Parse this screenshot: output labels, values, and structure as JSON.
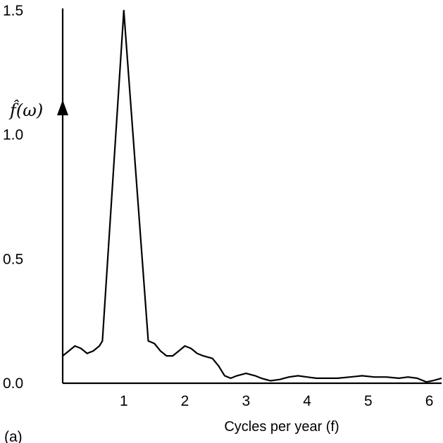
{
  "chart_data": {
    "type": "line",
    "panel_label": "(a)",
    "xlabel": "Cycles per year (f)",
    "ylabel": "f̂(ω)",
    "xlim": [
      0,
      6.2
    ],
    "ylim": [
      0,
      1.5
    ],
    "x_ticks": [
      {
        "value": 1,
        "label": "1"
      },
      {
        "value": 2,
        "label": "2"
      },
      {
        "value": 3,
        "label": "3"
      },
      {
        "value": 4,
        "label": "4"
      },
      {
        "value": 5,
        "label": "5"
      },
      {
        "value": 6,
        "label": "6"
      }
    ],
    "y_ticks": [
      {
        "value": 0.0,
        "label": "0.0"
      },
      {
        "value": 0.5,
        "label": "0.5"
      },
      {
        "value": 1.0,
        "label": "1.0"
      },
      {
        "value": 1.5,
        "label": "1.5"
      }
    ],
    "grid": false,
    "series": [
      {
        "color": "#000000",
        "points": [
          [
            0.0,
            0.11
          ],
          [
            0.1,
            0.13
          ],
          [
            0.2,
            0.15
          ],
          [
            0.3,
            0.14
          ],
          [
            0.4,
            0.12
          ],
          [
            0.5,
            0.13
          ],
          [
            0.6,
            0.15
          ],
          [
            0.65,
            0.17
          ],
          [
            1.0,
            1.5
          ],
          [
            1.4,
            0.17
          ],
          [
            1.5,
            0.16
          ],
          [
            1.6,
            0.13
          ],
          [
            1.7,
            0.11
          ],
          [
            1.8,
            0.11
          ],
          [
            1.9,
            0.13
          ],
          [
            2.0,
            0.15
          ],
          [
            2.1,
            0.14
          ],
          [
            2.2,
            0.12
          ],
          [
            2.3,
            0.11
          ],
          [
            2.45,
            0.1
          ],
          [
            2.55,
            0.07
          ],
          [
            2.65,
            0.03
          ],
          [
            2.75,
            0.02
          ],
          [
            2.85,
            0.03
          ],
          [
            3.0,
            0.04
          ],
          [
            3.15,
            0.03
          ],
          [
            3.25,
            0.02
          ],
          [
            3.4,
            0.01
          ],
          [
            3.55,
            0.015
          ],
          [
            3.7,
            0.025
          ],
          [
            3.85,
            0.03
          ],
          [
            4.0,
            0.025
          ],
          [
            4.15,
            0.02
          ],
          [
            4.3,
            0.02
          ],
          [
            4.5,
            0.02
          ],
          [
            4.7,
            0.025
          ],
          [
            4.9,
            0.03
          ],
          [
            5.1,
            0.025
          ],
          [
            5.3,
            0.025
          ],
          [
            5.5,
            0.02
          ],
          [
            5.65,
            0.025
          ],
          [
            5.8,
            0.02
          ],
          [
            5.95,
            0.005
          ],
          [
            6.05,
            0.01
          ],
          [
            6.2,
            0.02
          ]
        ]
      }
    ]
  }
}
